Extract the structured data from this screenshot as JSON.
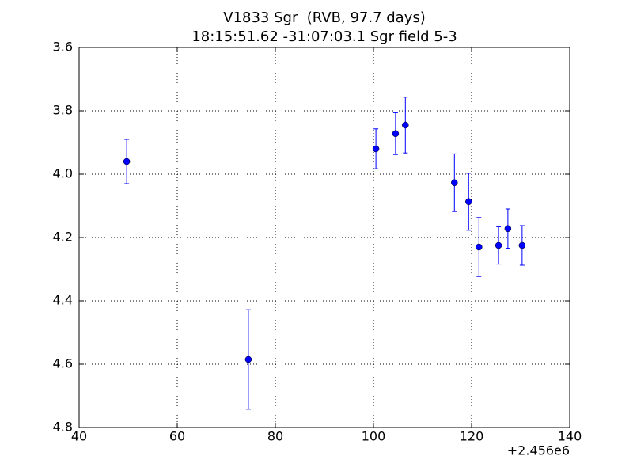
{
  "chart_data": {
    "type": "errorbar",
    "title": "V1833 Sgr  (RVB, 97.7 days)",
    "subtitle": "18:15:51.62 -31:07:03.1 Sgr field 5-3",
    "x_offset_label": "+2.456e6",
    "x": [
      49.7,
      74.5,
      100.5,
      104.5,
      106.5,
      116.5,
      119.4,
      121.5,
      125.5,
      127.4,
      130.3
    ],
    "values": [
      3.96,
      4.585,
      3.92,
      3.872,
      3.845,
      4.027,
      4.087,
      4.23,
      4.225,
      4.172,
      4.225
    ],
    "errors": [
      0.07,
      0.157,
      0.063,
      0.066,
      0.088,
      0.091,
      0.09,
      0.093,
      0.059,
      0.062,
      0.0625
    ],
    "color": "#0000ff",
    "xlim": [
      40,
      140
    ],
    "xticks": [
      40,
      60,
      80,
      100,
      120,
      140
    ],
    "ylim": [
      4.8,
      3.6
    ],
    "yticks": [
      3.6,
      3.8,
      {
        "value": 4,
        "label": "4.0"
      },
      4.2,
      4.4,
      4.6,
      4.8
    ],
    "grid": true
  }
}
